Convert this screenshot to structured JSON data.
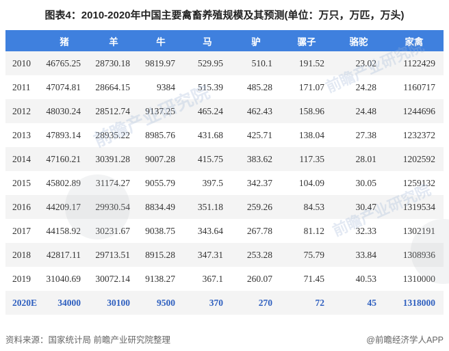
{
  "page": {
    "title": "图表4：2010-2020年中国主要禽畜养殖规模及其预测(单位：万只，万匹，万头)",
    "source_note": "资料来源：国家统计局 前瞻产业研究院整理",
    "credit": "@前瞻经济学人APP"
  },
  "colors": {
    "page_bg": "#ffffff",
    "header_bg": "#3f80de",
    "header_text": "#ffffff",
    "stripe_bg": "#f4f4f4",
    "body_text": "#333333",
    "forecast_text": "#2e5fbf",
    "title_text": "#222222",
    "footer_text": "#666666",
    "watermark_text": "#9db4d6"
  },
  "watermarks": {
    "w1": "前瞻产业研究院",
    "w2": "前瞻产业研究院",
    "w3": "前瞻产业研究院"
  },
  "chart_data": {
    "type": "table",
    "title": "图表4：2010-2020年中国主要禽畜养殖规模及其预测",
    "unit_note": "单位：万只，万匹，万头",
    "columns": [
      "猪",
      "羊",
      "牛",
      "马",
      "驴",
      "骡子",
      "骆驼",
      "家禽"
    ],
    "rows": [
      {
        "year": "2010",
        "values": [
          "46765.25",
          "28730.18",
          "9819.97",
          "529.95",
          "510.1",
          "191.52",
          "23.02",
          "1122429"
        ],
        "forecast": false
      },
      {
        "year": "2011",
        "values": [
          "47074.81",
          "28664.15",
          "9384",
          "515.39",
          "485.28",
          "171.07",
          "24.28",
          "1160717"
        ],
        "forecast": false
      },
      {
        "year": "2012",
        "values": [
          "48030.24",
          "28512.74",
          "9137.25",
          "465.24",
          "462.43",
          "158.96",
          "24.48",
          "1244696"
        ],
        "forecast": false
      },
      {
        "year": "2013",
        "values": [
          "47893.14",
          "28935.22",
          "8985.76",
          "431.68",
          "425.71",
          "138.04",
          "27.38",
          "1232372"
        ],
        "forecast": false
      },
      {
        "year": "2014",
        "values": [
          "47160.21",
          "30391.28",
          "9007.28",
          "415.75",
          "383.62",
          "117.35",
          "28.01",
          "1202592"
        ],
        "forecast": false
      },
      {
        "year": "2015",
        "values": [
          "45802.89",
          "31174.27",
          "9055.79",
          "397.5",
          "342.37",
          "104.09",
          "30.05",
          "1259132"
        ],
        "forecast": false
      },
      {
        "year": "2016",
        "values": [
          "44209.17",
          "29930.54",
          "8834.49",
          "351.18",
          "259.26",
          "84.53",
          "30.47",
          "1319534"
        ],
        "forecast": false
      },
      {
        "year": "2017",
        "values": [
          "44158.92",
          "30231.67",
          "9038.75",
          "343.64",
          "267.78",
          "81.12",
          "32.33",
          "1302191"
        ],
        "forecast": false
      },
      {
        "year": "2018",
        "values": [
          "42817.11",
          "29713.51",
          "8915.28",
          "347.31",
          "253.28",
          "75.79",
          "33.84",
          "1308936"
        ],
        "forecast": false
      },
      {
        "year": "2019",
        "values": [
          "31040.69",
          "30072.14",
          "9138.27",
          "367.1",
          "260.07",
          "71.45",
          "40.53",
          "1310000"
        ],
        "forecast": false
      },
      {
        "year": "2020E",
        "values": [
          "34000",
          "30100",
          "9500",
          "370",
          "270",
          "72",
          "45",
          "1318000"
        ],
        "forecast": true
      }
    ]
  }
}
